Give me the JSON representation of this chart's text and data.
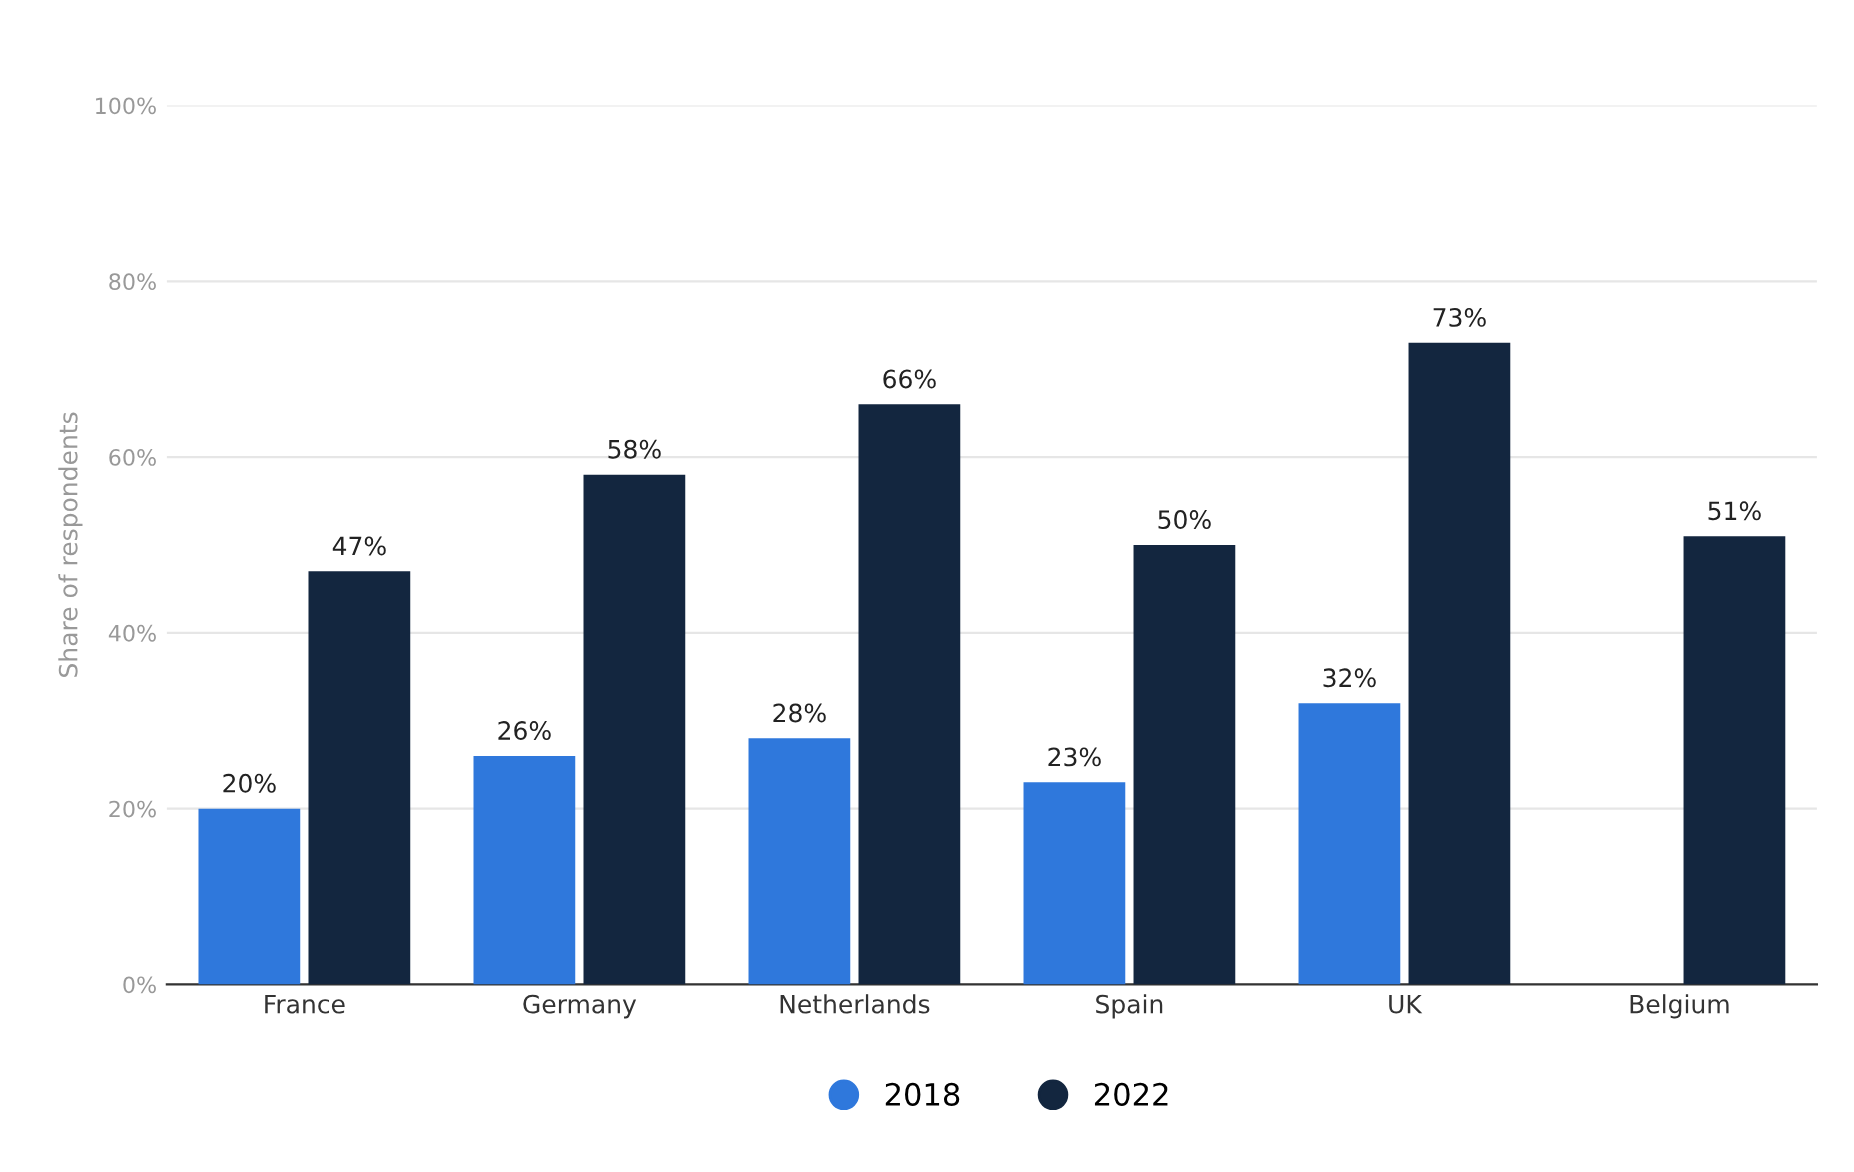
{
  "chart_data": {
    "type": "bar",
    "ylabel": "Share of respondents",
    "categories": [
      "France",
      "Germany",
      "Netherlands",
      "Spain",
      "UK",
      "Belgium"
    ],
    "series": [
      {
        "name": "2018",
        "color": "#2f78dc",
        "values": [
          20,
          26,
          28,
          23,
          32,
          null
        ],
        "value_labels": [
          "20%",
          "26%",
          "28%",
          "23%",
          "32%",
          null
        ]
      },
      {
        "name": "2022",
        "color": "#13263f",
        "values": [
          47,
          58,
          66,
          50,
          73,
          51
        ],
        "value_labels": [
          "47%",
          "58%",
          "66%",
          "50%",
          "73%",
          "51%"
        ]
      }
    ],
    "ylim": [
      0,
      100
    ],
    "yticks": [
      {
        "value": 0,
        "label": "0%"
      },
      {
        "value": 20,
        "label": "20%"
      },
      {
        "value": 40,
        "label": "40%"
      },
      {
        "value": 60,
        "label": "60%"
      },
      {
        "value": 80,
        "label": "80%"
      },
      {
        "value": 100,
        "label": "100%"
      }
    ],
    "grid": "y",
    "legend": "bottom"
  }
}
